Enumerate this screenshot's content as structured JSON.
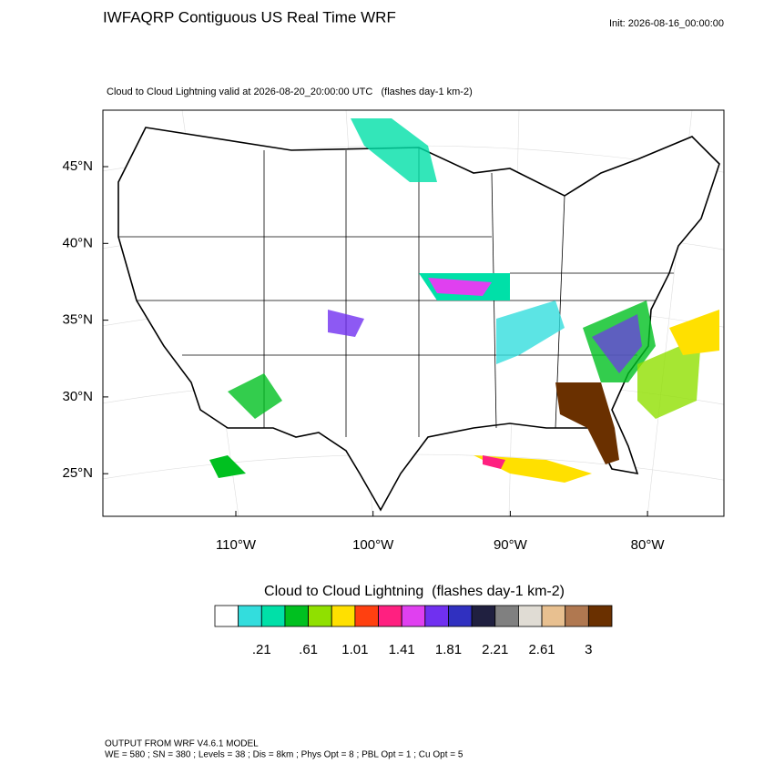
{
  "header": {
    "title": "IWFAQRP Contiguous US Real Time WRF",
    "init": "Init: 2026-08-16_00:00:00",
    "subtitle": "Cloud to Cloud Lightning valid at 2026-08-20_20:00:00 UTC   (flashes day-1 km-2)"
  },
  "map": {
    "lat_labels": [
      "45°N",
      "40°N",
      "35°N",
      "30°N",
      "25°N"
    ],
    "lon_labels": [
      "110°W",
      "100°W",
      "90°W",
      "80°W"
    ]
  },
  "colorbar": {
    "title": "Cloud to Cloud Lightning  (flashes day-1 km-2)",
    "colors": [
      "#ffffff",
      "#33dddd",
      "#00e0a8",
      "#00c020",
      "#90e000",
      "#ffe000",
      "#ff4010",
      "#ff2080",
      "#e040f0",
      "#7030f0",
      "#3030c0",
      "#202040",
      "#808080",
      "#e0dcd4",
      "#e8c090",
      "#b07850",
      "#6a3000"
    ],
    "labels": [
      ".21",
      ".61",
      "1.01",
      "1.41",
      "1.81",
      "2.21",
      "2.61",
      "3"
    ]
  },
  "footer": {
    "line1": "OUTPUT FROM WRF V4.6.1 MODEL",
    "line2": "WE = 580 ; SN = 380 ; Levels = 38 ; Dis = 8km ; Phys Opt = 8 ; PBL Opt = 1 ; Cu Opt = 5"
  }
}
